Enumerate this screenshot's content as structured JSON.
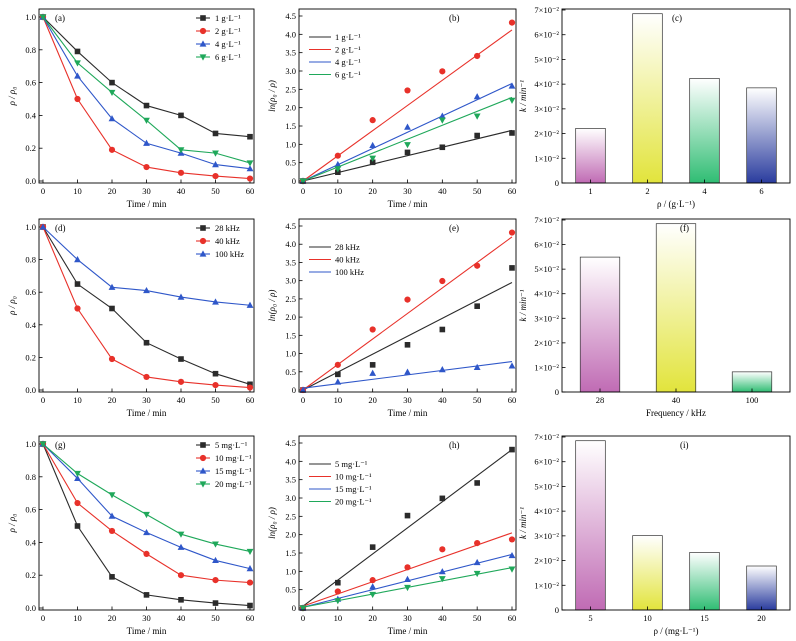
{
  "figure": {
    "colors": {
      "black": "#2b2b2b",
      "red": "#e8312a",
      "blue": "#2f57c9",
      "green": "#1fa85a"
    }
  },
  "chart_data": [
    {
      "id": "a",
      "type": "line",
      "panel_label": "(a)",
      "xlabel": "Time / min",
      "ylabel": "ρ / ρ₀",
      "xlim": [
        0,
        60
      ],
      "ylim": [
        0,
        1.0
      ],
      "xticks": [
        0,
        10,
        20,
        30,
        40,
        50,
        60
      ],
      "yticks": [
        0.0,
        0.2,
        0.4,
        0.6,
        0.8,
        1.0
      ],
      "ytick_labels": [
        "0.0",
        "0.2",
        "0.4",
        "0.6",
        "0.8",
        "1.0"
      ],
      "x": [
        0,
        10,
        20,
        30,
        40,
        50,
        60
      ],
      "legend_position": "top-right",
      "series": [
        {
          "name": "1 g·L⁻¹",
          "color": "#2b2b2b",
          "marker": "square",
          "values": [
            1.0,
            0.79,
            0.6,
            0.46,
            0.4,
            0.29,
            0.27
          ]
        },
        {
          "name": "2 g·L⁻¹",
          "color": "#e8312a",
          "marker": "circle",
          "values": [
            1.0,
            0.5,
            0.19,
            0.085,
            0.05,
            0.03,
            0.015
          ]
        },
        {
          "name": "4 g·L⁻¹",
          "color": "#2f57c9",
          "marker": "triangle-up",
          "values": [
            1.0,
            0.64,
            0.38,
            0.23,
            0.17,
            0.1,
            0.075
          ]
        },
        {
          "name": "6 g·L⁻¹",
          "color": "#1fa85a",
          "marker": "triangle-down",
          "values": [
            1.0,
            0.72,
            0.54,
            0.37,
            0.19,
            0.17,
            0.11
          ]
        }
      ]
    },
    {
      "id": "b",
      "type": "scatter",
      "panel_label": "(b)",
      "xlabel": "Time / min",
      "ylabel": "ln(ρ₀ / ρ)",
      "xlim": [
        0,
        60
      ],
      "ylim": [
        0,
        4.5
      ],
      "xticks": [
        0,
        10,
        20,
        30,
        40,
        50,
        60
      ],
      "yticks": [
        0,
        0.5,
        1.0,
        1.5,
        2.0,
        2.5,
        3.0,
        3.5,
        4.0,
        4.5
      ],
      "ytick_labels": [
        "0",
        "0.5",
        "1.0",
        "1.5",
        "2.0",
        "2.5",
        "3.0",
        "3.5",
        "4.0",
        "4.5"
      ],
      "x": [
        0,
        10,
        20,
        30,
        40,
        50,
        60
      ],
      "legend_position": "top-left",
      "series": [
        {
          "name": "1 g·L⁻¹",
          "color": "#2b2b2b",
          "marker": "square",
          "values": [
            0,
            0.24,
            0.51,
            0.78,
            0.92,
            1.24,
            1.31
          ],
          "fit": [
            0.0,
            1.38
          ]
        },
        {
          "name": "2 g·L⁻¹",
          "color": "#e8312a",
          "marker": "circle",
          "values": [
            0,
            0.69,
            1.66,
            2.47,
            2.99,
            3.41,
            4.32
          ],
          "fit": [
            0.0,
            4.12
          ]
        },
        {
          "name": "4 g·L⁻¹",
          "color": "#2f57c9",
          "marker": "triangle-up",
          "values": [
            0,
            0.45,
            0.97,
            1.47,
            1.77,
            2.3,
            2.59
          ],
          "fit": [
            0.0,
            2.66
          ]
        },
        {
          "name": "6 g·L⁻¹",
          "color": "#1fa85a",
          "marker": "triangle-down",
          "values": [
            0,
            0.33,
            0.62,
            0.99,
            1.66,
            1.77,
            2.2
          ],
          "fit": [
            0.0,
            2.28
          ]
        }
      ]
    },
    {
      "id": "c",
      "type": "bar",
      "panel_label": "(c)",
      "xlabel": "ρ / (g·L⁻¹)",
      "ylabel": "k / min⁻¹",
      "ylim": [
        0,
        0.07
      ],
      "yticks": [
        0,
        0.01,
        0.02,
        0.03,
        0.04,
        0.05,
        0.06,
        0.07
      ],
      "ytick_labels": [
        "0",
        "1×10⁻²",
        "2×10⁻²",
        "3×10⁻²",
        "4×10⁻²",
        "5×10⁻²",
        "6×10⁻²",
        "7×10⁻²"
      ],
      "categories": [
        "1",
        "2",
        "4",
        "6"
      ],
      "values": [
        0.0221,
        0.0685,
        0.0423,
        0.0385
      ],
      "bar_colors": [
        "#c06bb4",
        "#e2e43c",
        "#2fbd73",
        "#2a3c9e"
      ]
    },
    {
      "id": "d",
      "type": "line",
      "panel_label": "(d)",
      "xlabel": "Time / min",
      "ylabel": "ρ / ρ₀",
      "xlim": [
        0,
        60
      ],
      "ylim": [
        0,
        1.0
      ],
      "xticks": [
        0,
        10,
        20,
        30,
        40,
        50,
        60
      ],
      "yticks": [
        0.0,
        0.2,
        0.4,
        0.6,
        0.8,
        1.0
      ],
      "ytick_labels": [
        "0.0",
        "0.2",
        "0.4",
        "0.6",
        "0.8",
        "1.0"
      ],
      "x": [
        0,
        10,
        20,
        30,
        40,
        50,
        60
      ],
      "legend_position": "top-right",
      "series": [
        {
          "name": "28 kHz",
          "color": "#2b2b2b",
          "marker": "square",
          "values": [
            1.0,
            0.65,
            0.5,
            0.29,
            0.19,
            0.1,
            0.035
          ]
        },
        {
          "name": "40 kHz",
          "color": "#e8312a",
          "marker": "circle",
          "values": [
            1.0,
            0.5,
            0.19,
            0.08,
            0.05,
            0.03,
            0.015
          ]
        },
        {
          "name": "100 kHz",
          "color": "#2f57c9",
          "marker": "triangle-up",
          "values": [
            1.0,
            0.8,
            0.63,
            0.61,
            0.57,
            0.54,
            0.52
          ]
        }
      ]
    },
    {
      "id": "e",
      "type": "scatter",
      "panel_label": "(e)",
      "xlabel": "Time / min",
      "ylabel": "ln(ρ₀ / ρ)",
      "xlim": [
        0,
        60
      ],
      "ylim": [
        0,
        4.5
      ],
      "xticks": [
        0,
        10,
        20,
        30,
        40,
        50,
        60
      ],
      "yticks": [
        0,
        0.5,
        1.0,
        1.5,
        2.0,
        2.5,
        3.0,
        3.5,
        4.0,
        4.5
      ],
      "ytick_labels": [
        "0",
        "0.5",
        "1.0",
        "1.5",
        "2.0",
        "2.5",
        "3.0",
        "3.5",
        "4.0",
        "4.5"
      ],
      "x": [
        0,
        10,
        20,
        30,
        40,
        50,
        60
      ],
      "legend_position": "top-left",
      "series": [
        {
          "name": "28 kHz",
          "color": "#2b2b2b",
          "marker": "square",
          "values": [
            0,
            0.43,
            0.69,
            1.24,
            1.66,
            2.3,
            3.35
          ],
          "fit": [
            0.0,
            2.95
          ]
        },
        {
          "name": "40 kHz",
          "color": "#e8312a",
          "marker": "circle",
          "values": [
            0,
            0.69,
            1.66,
            2.48,
            2.99,
            3.41,
            4.32
          ],
          "fit": [
            0.0,
            4.2
          ]
        },
        {
          "name": "100 kHz",
          "color": "#2f57c9",
          "marker": "triangle-up",
          "values": [
            0,
            0.22,
            0.46,
            0.49,
            0.56,
            0.62,
            0.66
          ],
          "fit": [
            0.05,
            0.78
          ]
        }
      ]
    },
    {
      "id": "f",
      "type": "bar",
      "panel_label": "(f)",
      "xlabel": "Frequency / kHz",
      "ylabel": "k / min⁻¹",
      "ylim": [
        0,
        0.07
      ],
      "yticks": [
        0,
        0.01,
        0.02,
        0.03,
        0.04,
        0.05,
        0.06,
        0.07
      ],
      "ytick_labels": [
        "0",
        "1×10⁻²",
        "2×10⁻²",
        "3×10⁻²",
        "4×10⁻²",
        "5×10⁻²",
        "6×10⁻²",
        "7×10⁻²"
      ],
      "categories": [
        "28",
        "40",
        "100"
      ],
      "values": [
        0.0549,
        0.0685,
        0.0082
      ],
      "bar_colors": [
        "#c06bb4",
        "#e2e43c",
        "#2fbd73"
      ]
    },
    {
      "id": "g",
      "type": "line",
      "panel_label": "(g)",
      "xlabel": "Time / min",
      "ylabel": "ρ / ρ₀",
      "xlim": [
        0,
        60
      ],
      "ylim": [
        0,
        1.0
      ],
      "xticks": [
        0,
        10,
        20,
        30,
        40,
        50,
        60
      ],
      "yticks": [
        0.0,
        0.2,
        0.4,
        0.6,
        0.8,
        1.0
      ],
      "ytick_labels": [
        "0.0",
        "0.2",
        "0.4",
        "0.6",
        "0.8",
        "1.0"
      ],
      "x": [
        0,
        10,
        20,
        30,
        40,
        50,
        60
      ],
      "legend_position": "top-right",
      "series": [
        {
          "name": "5 mg·L⁻¹",
          "color": "#2b2b2b",
          "marker": "square",
          "values": [
            1.0,
            0.5,
            0.19,
            0.08,
            0.05,
            0.03,
            0.015
          ]
        },
        {
          "name": "10 mg·L⁻¹",
          "color": "#e8312a",
          "marker": "circle",
          "values": [
            1.0,
            0.64,
            0.47,
            0.33,
            0.2,
            0.17,
            0.155
          ]
        },
        {
          "name": "15 mg·L⁻¹",
          "color": "#2f57c9",
          "marker": "triangle-up",
          "values": [
            1.0,
            0.79,
            0.56,
            0.46,
            0.37,
            0.29,
            0.24
          ]
        },
        {
          "name": "20 mg·L⁻¹",
          "color": "#1fa85a",
          "marker": "triangle-down",
          "values": [
            1.0,
            0.82,
            0.69,
            0.57,
            0.45,
            0.39,
            0.345
          ]
        }
      ]
    },
    {
      "id": "h",
      "type": "scatter",
      "panel_label": "(h)",
      "xlabel": "Time / min",
      "ylabel": "ln(ρ₀ / ρ)",
      "xlim": [
        0,
        60
      ],
      "ylim": [
        0,
        4.5
      ],
      "xticks": [
        0,
        10,
        20,
        30,
        40,
        50,
        60
      ],
      "yticks": [
        0,
        0.5,
        1.0,
        1.5,
        2.0,
        2.5,
        3.0,
        3.5,
        4.0,
        4.5
      ],
      "ytick_labels": [
        "0",
        "0.5",
        "1.0",
        "1.5",
        "2.0",
        "2.5",
        "3.0",
        "3.5",
        "4.0",
        "4.5"
      ],
      "x": [
        0,
        10,
        20,
        30,
        40,
        50,
        60
      ],
      "legend_position": "top-left",
      "series": [
        {
          "name": "5 mg·L⁻¹",
          "color": "#2b2b2b",
          "marker": "square",
          "values": [
            0,
            0.69,
            1.66,
            2.52,
            2.99,
            3.41,
            4.32
          ],
          "fit": [
            0.05,
            4.32
          ]
        },
        {
          "name": "10 mg·L⁻¹",
          "color": "#e8312a",
          "marker": "circle",
          "values": [
            0,
            0.45,
            0.76,
            1.11,
            1.6,
            1.77,
            1.87
          ],
          "fit": [
            0.05,
            2.05
          ]
        },
        {
          "name": "15 mg·L⁻¹",
          "color": "#2f57c9",
          "marker": "triangle-up",
          "values": [
            0,
            0.24,
            0.58,
            0.78,
            0.99,
            1.24,
            1.43
          ],
          "fit": [
            0.02,
            1.46
          ]
        },
        {
          "name": "20 mg·L⁻¹",
          "color": "#1fa85a",
          "marker": "triangle-down",
          "values": [
            0,
            0.2,
            0.37,
            0.56,
            0.8,
            0.94,
            1.06
          ],
          "fit": [
            0.02,
            1.1
          ]
        }
      ]
    },
    {
      "id": "i",
      "type": "bar",
      "panel_label": "(i)",
      "xlabel": "ρ / (mg·L⁻¹)",
      "ylabel": "k / min⁻¹",
      "ylim": [
        0,
        0.07
      ],
      "yticks": [
        0,
        0.01,
        0.02,
        0.03,
        0.04,
        0.05,
        0.06,
        0.07
      ],
      "ytick_labels": [
        "0",
        "1×10⁻²",
        "2×10⁻²",
        "3×10⁻²",
        "4×10⁻²",
        "5×10⁻²",
        "6×10⁻²",
        "7×10⁻²"
      ],
      "categories": [
        "5",
        "10",
        "15",
        "20"
      ],
      "values": [
        0.0685,
        0.0301,
        0.0233,
        0.0178
      ],
      "bar_colors": [
        "#c06bb4",
        "#e2e43c",
        "#2fbd73",
        "#2a3c9e"
      ]
    }
  ]
}
